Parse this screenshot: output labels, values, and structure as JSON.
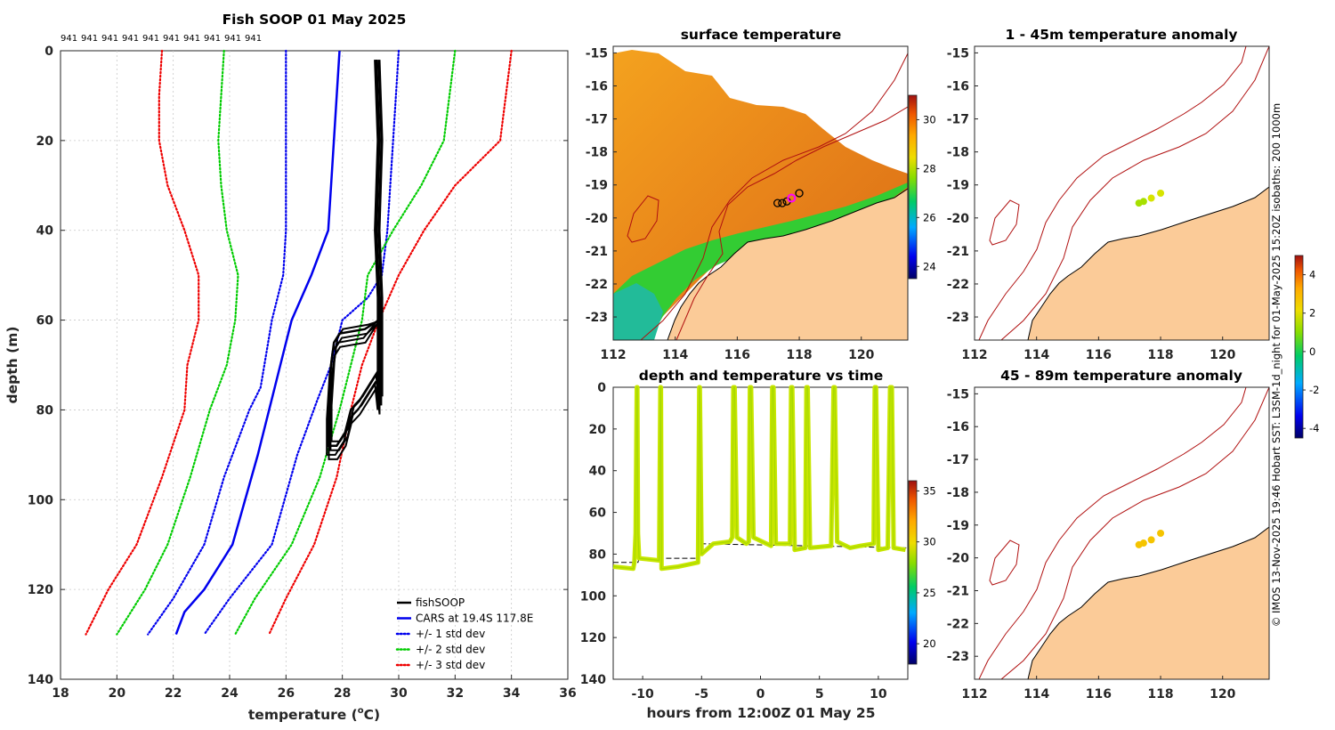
{
  "chart_data": [
    {
      "id": "profile",
      "type": "line",
      "title": "Fish SOOP 01 May 2025",
      "profile_ids": [
        "941",
        "941",
        "941",
        "941",
        "941",
        "941",
        "941",
        "941",
        "941",
        "941"
      ],
      "xlabel": "temperature (",
      "xlabel_sup": "o",
      "xlabel_end": "C)",
      "ylabel": "depth (m)",
      "xlim": [
        18,
        36
      ],
      "ylim": [
        0,
        140
      ],
      "xticks": [
        "18",
        "20",
        "22",
        "24",
        "26",
        "28",
        "30",
        "32",
        "34",
        "36"
      ],
      "yticks": [
        "0",
        "20",
        "40",
        "60",
        "80",
        "100",
        "120",
        "140"
      ],
      "series": [
        {
          "name": "CARS at 19.4S 117.8E",
          "color": "#0000ee",
          "style": "solid",
          "points": [
            [
              27.9,
              0
            ],
            [
              27.6,
              30
            ],
            [
              27.5,
              40
            ],
            [
              26.9,
              50
            ],
            [
              26.2,
              60
            ],
            [
              25.8,
              70
            ],
            [
              25.6,
              75
            ],
            [
              25.0,
              90
            ],
            [
              24.1,
              110
            ],
            [
              23.1,
              120
            ],
            [
              22.4,
              125
            ],
            [
              22.1,
              130
            ]
          ]
        },
        {
          "name": "+/- 1 std dev",
          "color": "#0000ee",
          "style": "dotted",
          "points": [
            [
              26.0,
              0
            ],
            [
              26.0,
              40
            ],
            [
              25.9,
              50
            ],
            [
              25.5,
              60
            ],
            [
              25.1,
              75
            ],
            [
              24.7,
              80
            ],
            [
              23.8,
              95
            ],
            [
              23.1,
              110
            ],
            [
              22.0,
              122
            ],
            [
              21.1,
              130
            ]
          ]
        },
        {
          "name": "+/- 1 std dev",
          "color": "#0000ee",
          "style": "dotted",
          "points": [
            [
              30.0,
              0
            ],
            [
              29.8,
              20
            ],
            [
              29.6,
              40
            ],
            [
              29.4,
              50
            ],
            [
              28.9,
              55
            ],
            [
              28.0,
              60
            ],
            [
              27.6,
              70
            ],
            [
              27.1,
              78
            ],
            [
              26.4,
              90
            ],
            [
              25.5,
              110
            ],
            [
              24.0,
              122
            ],
            [
              23.1,
              130
            ]
          ]
        },
        {
          "name": "+/- 2 std dev",
          "color": "#00cc00",
          "style": "dotted",
          "points": [
            [
              23.8,
              0
            ],
            [
              23.6,
              20
            ],
            [
              23.7,
              30
            ],
            [
              23.9,
              40
            ],
            [
              24.3,
              50
            ],
            [
              24.2,
              60
            ],
            [
              23.9,
              70
            ],
            [
              23.3,
              80
            ],
            [
              22.6,
              95
            ],
            [
              21.8,
              110
            ],
            [
              21.0,
              120
            ],
            [
              20.0,
              130
            ]
          ]
        },
        {
          "name": "+/- 2 std dev",
          "color": "#00cc00",
          "style": "dotted",
          "points": [
            [
              32.0,
              0
            ],
            [
              31.6,
              20
            ],
            [
              30.8,
              30
            ],
            [
              29.8,
              40
            ],
            [
              28.9,
              50
            ],
            [
              28.7,
              60
            ],
            [
              28.3,
              70
            ],
            [
              27.9,
              80
            ],
            [
              27.2,
              95
            ],
            [
              26.2,
              110
            ],
            [
              24.9,
              122
            ],
            [
              24.2,
              130
            ]
          ]
        },
        {
          "name": "+/- 3 std dev",
          "color": "#ee0000",
          "style": "dotted",
          "points": [
            [
              21.6,
              0
            ],
            [
              21.5,
              10
            ],
            [
              21.5,
              20
            ],
            [
              21.8,
              30
            ],
            [
              22.4,
              40
            ],
            [
              22.9,
              50
            ],
            [
              22.9,
              60
            ],
            [
              22.5,
              70
            ],
            [
              22.4,
              80
            ],
            [
              21.6,
              95
            ],
            [
              20.7,
              110
            ],
            [
              19.7,
              120
            ],
            [
              18.9,
              130
            ]
          ]
        },
        {
          "name": "+/- 3 std dev",
          "color": "#ee0000",
          "style": "dotted",
          "points": [
            [
              34.0,
              0
            ],
            [
              33.6,
              20
            ],
            [
              32.0,
              30
            ],
            [
              30.9,
              40
            ],
            [
              30.0,
              50
            ],
            [
              29.3,
              60
            ],
            [
              28.7,
              70
            ],
            [
              28.3,
              80
            ],
            [
              27.8,
              95
            ],
            [
              27.0,
              110
            ],
            [
              26.0,
              122
            ],
            [
              25.4,
              130
            ]
          ]
        },
        {
          "name": "fishSOOP",
          "color": "#000000",
          "style": "solid",
          "points": [
            [
              29.2,
              2
            ],
            [
              29.3,
              20
            ],
            [
              29.2,
              40
            ],
            [
              29.3,
              55
            ],
            [
              29.3,
              60
            ],
            [
              28.8,
              62
            ],
            [
              27.9,
              63
            ],
            [
              27.7,
              65
            ],
            [
              27.6,
              70
            ],
            [
              27.5,
              80
            ],
            [
              27.5,
              88
            ],
            [
              27.8,
              88
            ],
            [
              28.1,
              85
            ],
            [
              28.3,
              80
            ],
            [
              28.6,
              78
            ],
            [
              28.8,
              76
            ],
            [
              29.0,
              74
            ],
            [
              29.2,
              72
            ],
            [
              29.3,
              78
            ],
            [
              29.3,
              60
            ]
          ]
        }
      ],
      "legend": [
        "fishSOOP",
        "CARS at 19.4S 117.8E",
        "+/- 1 std dev",
        "+/- 2 std dev",
        "+/- 3 std dev"
      ],
      "legend_colors": [
        "#000000",
        "#0000ee",
        "#0000ee",
        "#00cc00",
        "#ee0000"
      ],
      "legend_styles": [
        "solid",
        "solid",
        "dotted",
        "dotted",
        "dotted"
      ]
    },
    {
      "id": "sst_map",
      "type": "heatmap",
      "title": "surface temperature",
      "xlim": [
        112,
        121.5
      ],
      "ylim": [
        -23.7,
        -14.8
      ],
      "xticks": [
        "112",
        "114",
        "116",
        "118",
        "120"
      ],
      "yticks": [
        "-15",
        "-16",
        "-17",
        "-18",
        "-19",
        "-20",
        "-21",
        "-22",
        "-23"
      ],
      "colorbar_ticks": [
        "30",
        "28",
        "26",
        "24"
      ],
      "colorbar_range": [
        23.5,
        31
      ],
      "positions_lon_lat": [
        [
          117.3,
          -19.55
        ],
        [
          117.45,
          -19.55
        ],
        [
          117.6,
          -19.5
        ],
        [
          117.75,
          -19.4
        ],
        [
          118.0,
          -19.25
        ]
      ]
    },
    {
      "id": "anomaly_shallow",
      "type": "scatter",
      "title": "1 - 45m temperature anomaly",
      "xlim": [
        112,
        121.5
      ],
      "ylim": [
        -23.7,
        -14.8
      ],
      "xticks": [
        "112",
        "114",
        "116",
        "118",
        "120"
      ],
      "yticks": [
        "-15",
        "-16",
        "-17",
        "-18",
        "-19",
        "-20",
        "-21",
        "-22",
        "-23"
      ],
      "points": [
        [
          117.3,
          -19.55,
          1.0
        ],
        [
          117.45,
          -19.5,
          1.0
        ],
        [
          117.7,
          -19.4,
          1.1
        ],
        [
          118.0,
          -19.25,
          1.2
        ]
      ]
    },
    {
      "id": "anomaly_deep",
      "type": "scatter",
      "title": "45 - 89m temperature anomaly",
      "xlim": [
        112,
        121.5
      ],
      "ylim": [
        -23.7,
        -14.8
      ],
      "xticks": [
        "112",
        "114",
        "116",
        "118",
        "120"
      ],
      "yticks": [
        "-15",
        "-16",
        "-17",
        "-18",
        "-19",
        "-20",
        "-21",
        "-22",
        "-23"
      ],
      "points": [
        [
          117.3,
          -19.6,
          2.3
        ],
        [
          117.45,
          -19.55,
          2.4
        ],
        [
          117.7,
          -19.45,
          2.6
        ],
        [
          118.0,
          -19.25,
          2.2
        ]
      ]
    },
    {
      "id": "depth_time",
      "type": "scatter",
      "title": "depth and temperature vs time",
      "xlabel": "hours from 12:00Z 01 May 25",
      "xlim": [
        -12.5,
        12.5
      ],
      "ylim": [
        0,
        140
      ],
      "xticks": [
        "-10",
        "-5",
        "0",
        "5",
        "10"
      ],
      "yticks": [
        "0",
        "20",
        "40",
        "60",
        "80",
        "100",
        "120",
        "140"
      ],
      "colorbar_ticks": [
        "35",
        "30",
        "25",
        "20"
      ],
      "colorbar_range": [
        18,
        36
      ],
      "trace": [
        [
          -12.5,
          86
        ],
        [
          -10.8,
          87
        ],
        [
          -10.7,
          84
        ],
        [
          -10.6,
          70
        ],
        [
          -10.5,
          0
        ],
        [
          -10.45,
          0
        ],
        [
          -10.4,
          70
        ],
        [
          -10.3,
          82
        ],
        [
          -8.6,
          83
        ],
        [
          -8.5,
          0
        ],
        [
          -8.45,
          0
        ],
        [
          -8.4,
          87
        ],
        [
          -7.0,
          86
        ],
        [
          -5.3,
          84
        ],
        [
          -5.2,
          0
        ],
        [
          -5.15,
          0
        ],
        [
          -5.0,
          80
        ],
        [
          -4.0,
          75
        ],
        [
          -2.6,
          74
        ],
        [
          -2.4,
          72
        ],
        [
          -2.3,
          0
        ],
        [
          -2.2,
          0
        ],
        [
          -2.0,
          72
        ],
        [
          -1.2,
          75
        ],
        [
          -1.0,
          74
        ],
        [
          -0.9,
          0
        ],
        [
          -0.8,
          0
        ],
        [
          -0.6,
          72
        ],
        [
          0.9,
          76
        ],
        [
          1.0,
          0
        ],
        [
          1.1,
          0
        ],
        [
          1.3,
          75
        ],
        [
          2.5,
          75
        ],
        [
          2.6,
          0
        ],
        [
          2.7,
          0
        ],
        [
          2.9,
          78
        ],
        [
          3.8,
          77
        ],
        [
          3.9,
          0
        ],
        [
          4.0,
          0
        ],
        [
          4.2,
          77
        ],
        [
          6.0,
          76
        ],
        [
          6.2,
          0
        ],
        [
          6.3,
          0
        ],
        [
          6.5,
          74
        ],
        [
          7.6,
          77
        ],
        [
          8.5,
          76
        ],
        [
          9.6,
          75
        ],
        [
          9.7,
          0
        ],
        [
          9.8,
          0
        ],
        [
          10.0,
          78
        ],
        [
          10.8,
          77
        ],
        [
          11.0,
          0
        ],
        [
          11.15,
          0
        ],
        [
          11.3,
          77
        ],
        [
          12.3,
          78
        ]
      ],
      "trace_temperature": 29.5,
      "bottom_ref": [
        [
          -12.5,
          84
        ],
        [
          -10.4,
          84
        ],
        [
          -10.3,
          82
        ],
        [
          -5.3,
          82
        ],
        [
          -5.2,
          75
        ],
        [
          12.5,
          77
        ]
      ]
    }
  ],
  "side_text": "© IMOS 13-Nov-2025 19:46 Hobart SST: L3SM-1d_night for 01-May-2025 15:20Z isobaths: 200  1000m",
  "anomaly_colorbar_ticks": [
    "4",
    "2",
    "0",
    "-2",
    "-4"
  ],
  "anomaly_colorbar_range": [
    -4.5,
    5
  ],
  "colors": {
    "land": "#fbcb98",
    "coast": "#000000",
    "isobath": "#b01010",
    "magenta": "#ff00ff"
  }
}
